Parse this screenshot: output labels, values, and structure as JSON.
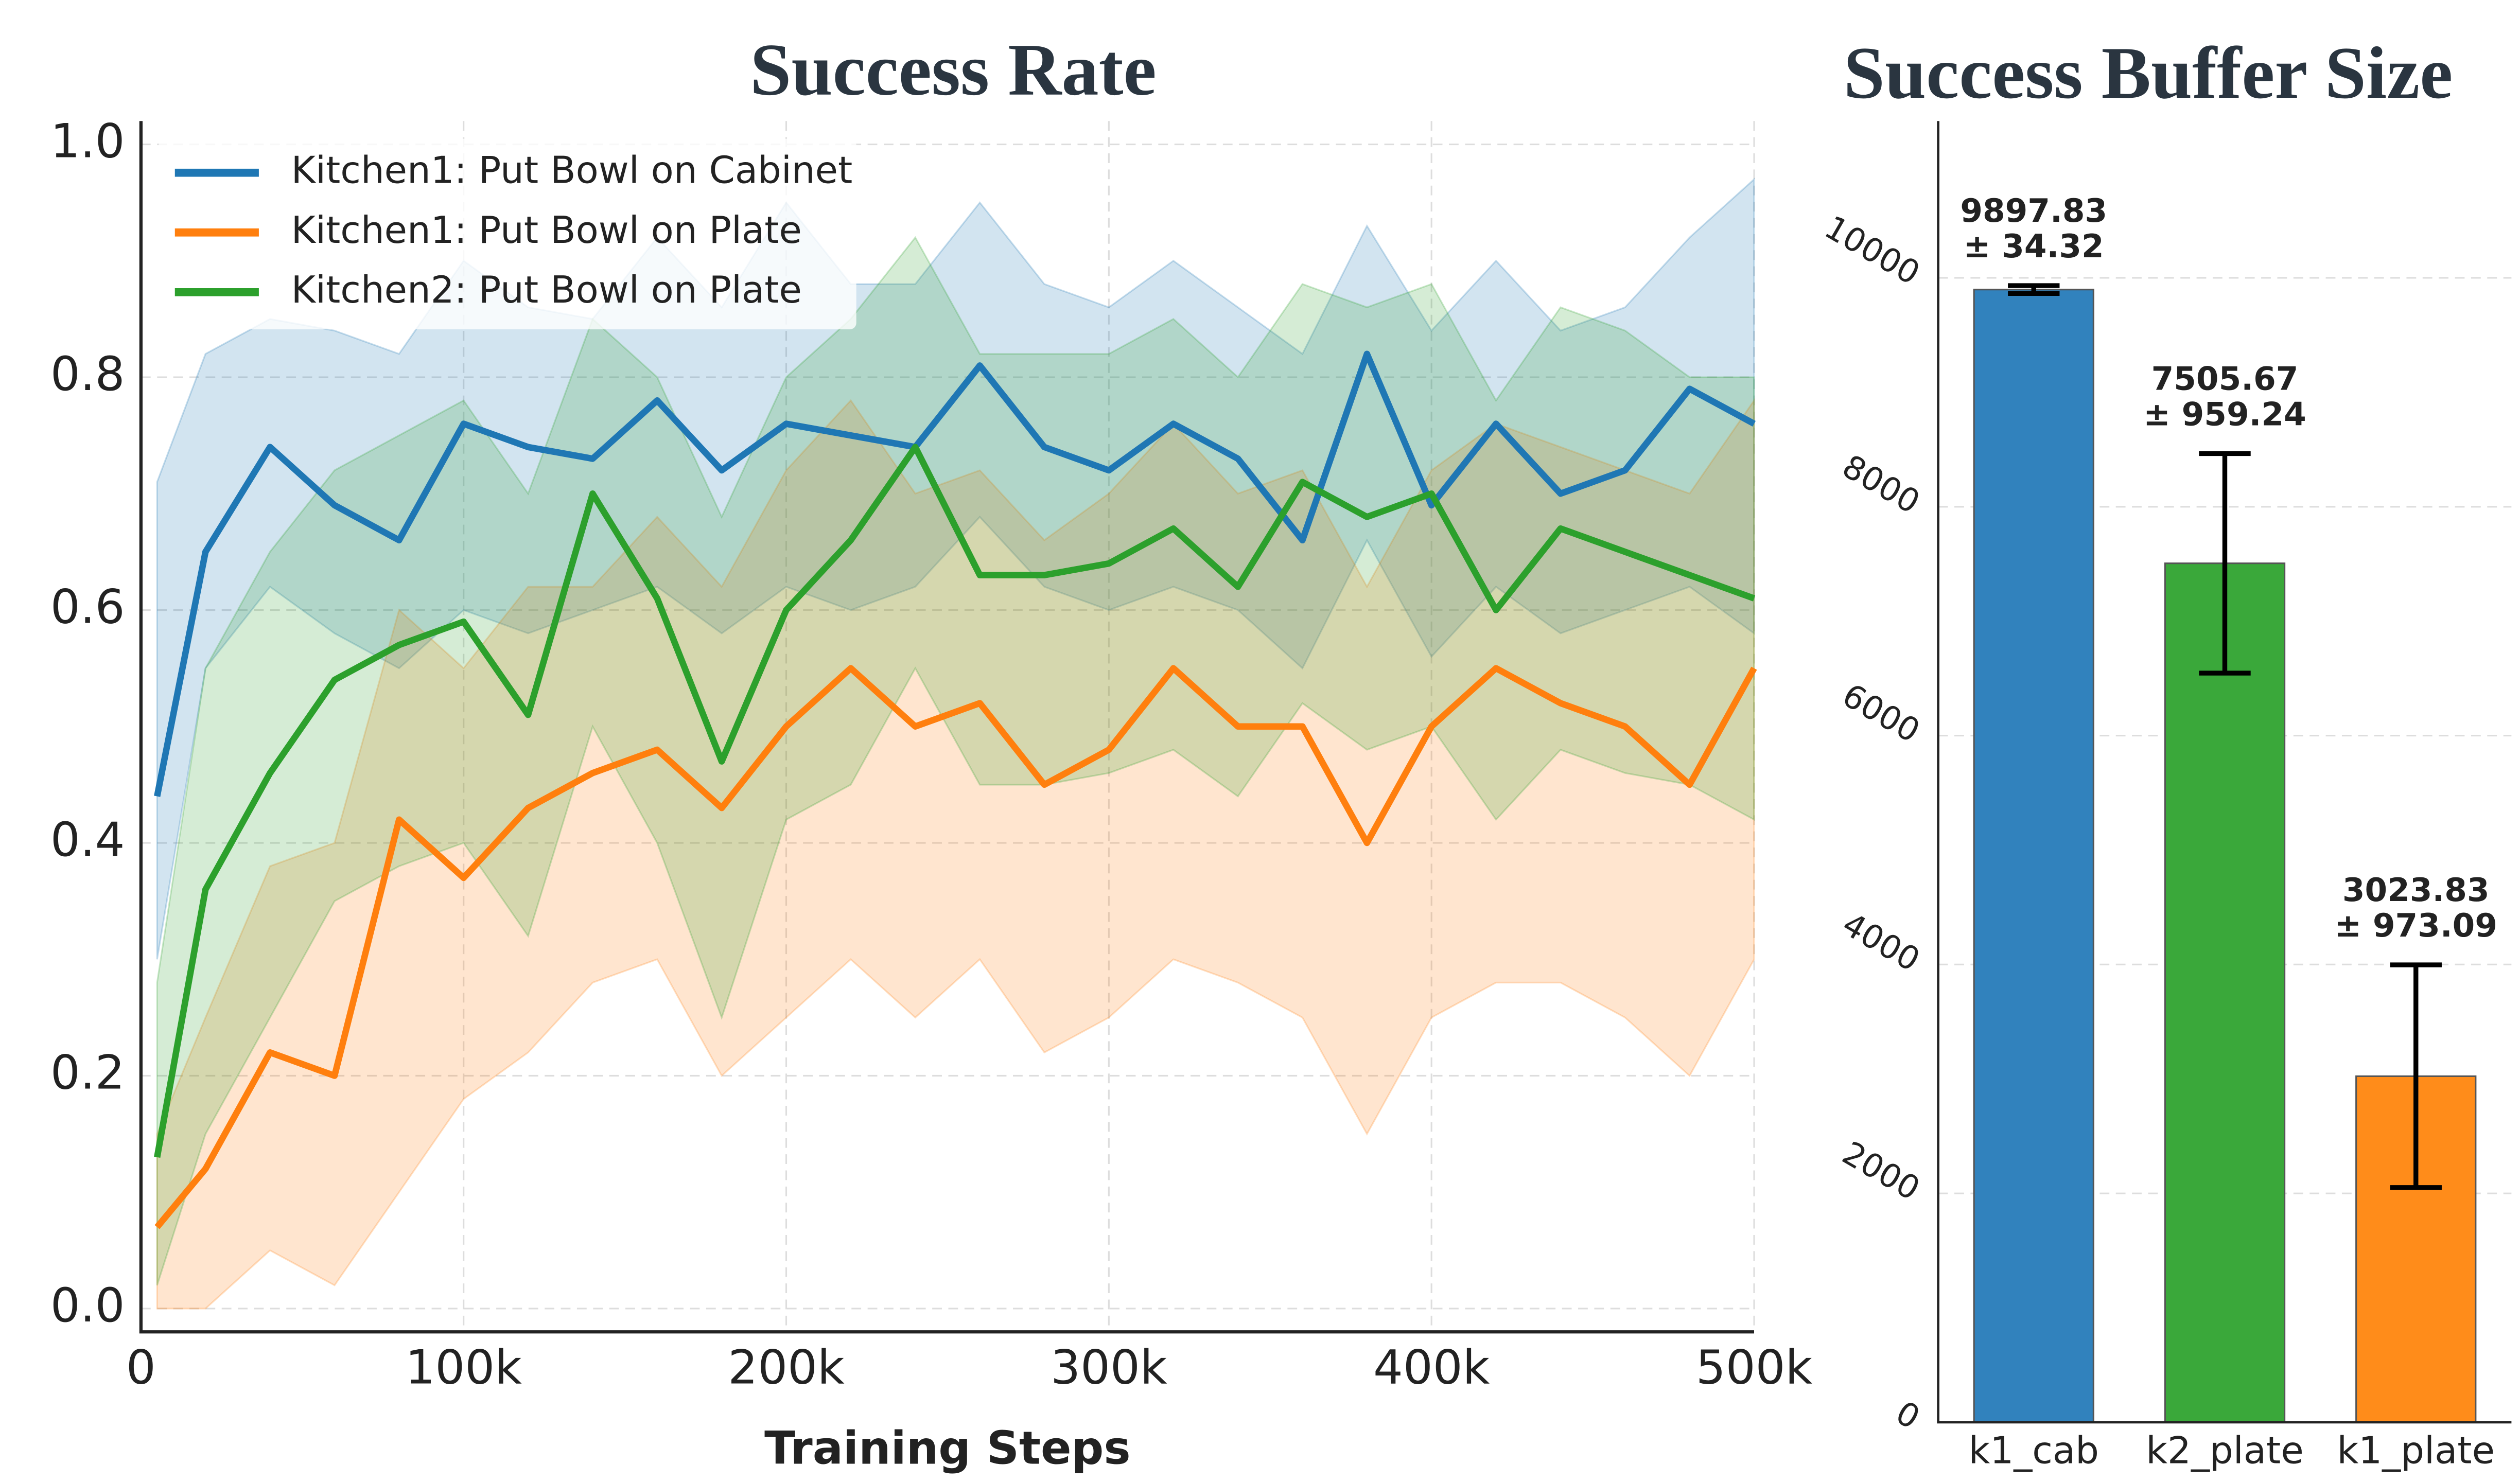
{
  "chart_data": [
    {
      "type": "line",
      "title": "Success Rate",
      "xlabel": "Training Steps",
      "x": [
        5000,
        20000,
        40000,
        60000,
        80000,
        100000,
        120000,
        140000,
        160000,
        180000,
        200000,
        220000,
        240000,
        260000,
        280000,
        300000,
        320000,
        340000,
        360000,
        380000,
        400000,
        420000,
        440000,
        460000,
        480000,
        500000
      ],
      "series": [
        {
          "name": "Kitchen1: Put Bowl on Cabinet",
          "color": "#1f77b4",
          "values": [
            0.44,
            0.65,
            0.74,
            0.69,
            0.66,
            0.76,
            0.74,
            0.73,
            0.78,
            0.72,
            0.76,
            0.75,
            0.74,
            0.81,
            0.74,
            0.72,
            0.76,
            0.73,
            0.66,
            0.82,
            0.69,
            0.76,
            0.7,
            0.72,
            0.79,
            0.76
          ],
          "lower": [
            0.3,
            0.55,
            0.62,
            0.58,
            0.55,
            0.6,
            0.58,
            0.6,
            0.62,
            0.58,
            0.62,
            0.6,
            0.62,
            0.68,
            0.62,
            0.6,
            0.62,
            0.6,
            0.55,
            0.66,
            0.56,
            0.62,
            0.58,
            0.6,
            0.62,
            0.58
          ],
          "upper": [
            0.71,
            0.82,
            0.85,
            0.84,
            0.82,
            0.9,
            0.86,
            0.85,
            0.92,
            0.86,
            0.95,
            0.88,
            0.88,
            0.95,
            0.88,
            0.86,
            0.9,
            0.86,
            0.82,
            0.93,
            0.84,
            0.9,
            0.84,
            0.86,
            0.92,
            0.97
          ]
        },
        {
          "name": "Kitchen1: Put Bowl on Plate",
          "color": "#ff7f0e",
          "values": [
            0.07,
            0.12,
            0.22,
            0.2,
            0.42,
            0.37,
            0.43,
            0.46,
            0.48,
            0.43,
            0.5,
            0.55,
            0.5,
            0.52,
            0.45,
            0.48,
            0.55,
            0.5,
            0.5,
            0.4,
            0.5,
            0.55,
            0.52,
            0.5,
            0.45,
            0.55
          ],
          "lower": [
            0.0,
            0.0,
            0.05,
            0.02,
            0.1,
            0.18,
            0.22,
            0.28,
            0.3,
            0.2,
            0.25,
            0.3,
            0.25,
            0.3,
            0.22,
            0.25,
            0.3,
            0.28,
            0.25,
            0.15,
            0.25,
            0.28,
            0.28,
            0.25,
            0.2,
            0.3
          ],
          "upper": [
            0.15,
            0.25,
            0.38,
            0.4,
            0.6,
            0.55,
            0.62,
            0.62,
            0.68,
            0.62,
            0.72,
            0.78,
            0.7,
            0.72,
            0.66,
            0.7,
            0.76,
            0.7,
            0.72,
            0.62,
            0.72,
            0.76,
            0.74,
            0.72,
            0.7,
            0.78
          ]
        },
        {
          "name": "Kitchen2: Put Bowl on Plate",
          "color": "#2ca02c",
          "values": [
            0.13,
            0.36,
            0.46,
            0.54,
            0.57,
            0.59,
            0.51,
            0.7,
            0.61,
            0.47,
            0.6,
            0.66,
            0.74,
            0.63,
            0.63,
            0.64,
            0.67,
            0.62,
            0.71,
            0.68,
            0.7,
            0.6,
            0.67,
            0.65,
            0.63,
            0.61
          ],
          "lower": [
            0.02,
            0.15,
            0.25,
            0.35,
            0.38,
            0.4,
            0.32,
            0.5,
            0.4,
            0.25,
            0.42,
            0.45,
            0.55,
            0.45,
            0.45,
            0.46,
            0.48,
            0.44,
            0.52,
            0.48,
            0.5,
            0.42,
            0.48,
            0.46,
            0.45,
            0.42
          ],
          "upper": [
            0.28,
            0.55,
            0.65,
            0.72,
            0.75,
            0.78,
            0.7,
            0.85,
            0.8,
            0.68,
            0.8,
            0.85,
            0.92,
            0.82,
            0.82,
            0.82,
            0.85,
            0.8,
            0.88,
            0.86,
            0.88,
            0.78,
            0.86,
            0.84,
            0.8,
            0.8
          ]
        }
      ],
      "xlim": [
        0,
        500000
      ],
      "xticks": [
        0,
        {
          "value": 100000,
          "label": "100k"
        },
        {
          "value": 200000,
          "label": "200k"
        },
        {
          "value": 300000,
          "label": "300k"
        },
        {
          "value": 400000,
          "label": "400k"
        },
        {
          "value": 500000,
          "label": "500k"
        }
      ],
      "ylim": [
        -0.02,
        1.02
      ],
      "yticks": [
        {
          "value": 0,
          "label": "0.0"
        },
        0.2,
        0.4,
        0.6,
        0.8,
        {
          "value": 1,
          "label": "1.0"
        }
      ],
      "grid": true,
      "legend": "upper left"
    },
    {
      "type": "bar",
      "title": "Success Buffer Size",
      "categories": [
        "k1_cab",
        "k2_plate",
        "k1_plate"
      ],
      "values": [
        9897.83,
        7505.67,
        3023.83
      ],
      "errors": [
        34.32,
        959.24,
        973.09
      ],
      "error_labels": [
        "± 34.32",
        "± 959.24",
        "± 973.09"
      ],
      "colors": [
        "#3182bd",
        "#3aa83a",
        "#ff8c1a"
      ],
      "ylim": [
        0,
        11370
      ],
      "yticks": [
        0,
        2000,
        4000,
        6000,
        8000,
        10000
      ],
      "grid": true
    }
  ]
}
